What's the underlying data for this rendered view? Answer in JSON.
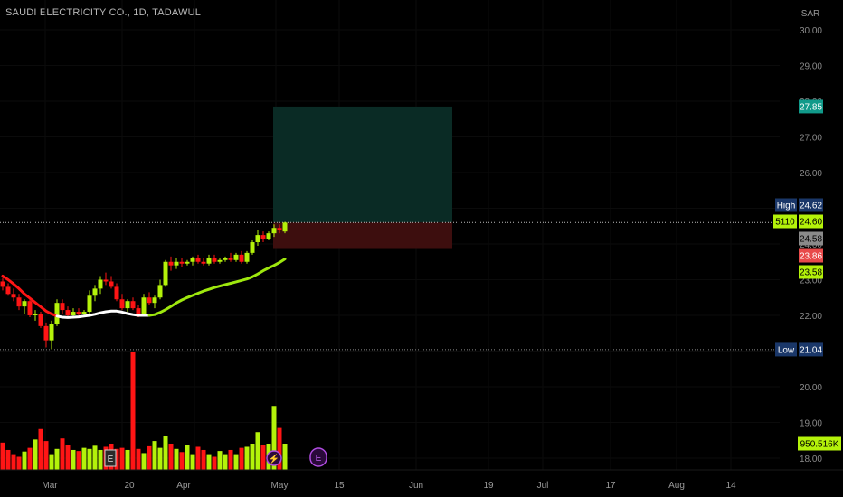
{
  "header": {
    "symbol_title": "SAUDI ELECTRICITY CO., 1D, TADAWUL",
    "currency": "SAR"
  },
  "price_axis": {
    "ticks": [
      "30.00",
      "29.00",
      "28.00",
      "27.00",
      "26.00",
      "25.00",
      "24.00",
      "23.00",
      "22.00",
      "21.00",
      "20.00",
      "19.00",
      "18.00"
    ]
  },
  "time_axis": {
    "labels": [
      "Mar",
      "20",
      "Apr",
      "May",
      "15",
      "Jun",
      "19",
      "Jul",
      "17",
      "Aug",
      "14"
    ]
  },
  "price_labels": {
    "target": "27.85",
    "high_label": "High",
    "high_value": "24.62",
    "volume_id": "5110",
    "last_price": "24.60",
    "stop_top": "24.58",
    "stop_bottom": "23.86",
    "ma_value": "23.58",
    "low_label": "Low",
    "low_value": "21.04",
    "volume_value": "950.516K"
  },
  "events": {
    "earnings_icon_1": "E",
    "earnings_icon_2": "E",
    "dividend_icon": "⚡"
  },
  "colors": {
    "bull": "#b4f20a",
    "bear": "#ff1515",
    "ma": "#9ee70e",
    "ma_transition": "#ffffff",
    "target_zone": "#0b2d27",
    "stop_zone": "#3d0e0e",
    "target_badge": "#119a8a",
    "high_low_badge": "#1a3769",
    "stop_top_badge": "#8a8a8a",
    "stop_bottom_badge": "#e84a4a"
  },
  "chart_data": {
    "type": "candlestick",
    "title": "SAUDI ELECTRICITY CO., 1D, TADAWUL",
    "currency": "SAR",
    "ylim": [
      17.7,
      30.4
    ],
    "high": 24.62,
    "low": 21.04,
    "last": 24.6,
    "trade_box": {
      "entry": 24.6,
      "target": 27.85,
      "stop": 23.86
    },
    "moving_average_last": 23.58,
    "volume_last": "950.516K",
    "candles": [
      [
        22.95,
        23.05,
        22.7,
        22.8
      ],
      [
        22.8,
        22.9,
        22.55,
        22.6
      ],
      [
        22.6,
        22.75,
        22.4,
        22.5
      ],
      [
        22.5,
        22.6,
        22.15,
        22.25
      ],
      [
        22.25,
        22.45,
        22.05,
        22.4
      ],
      [
        22.4,
        22.5,
        21.95,
        22.0
      ],
      [
        22.0,
        22.15,
        21.85,
        22.05
      ],
      [
        22.05,
        22.1,
        21.65,
        21.7
      ],
      [
        21.7,
        21.8,
        21.1,
        21.3
      ],
      [
        21.3,
        21.85,
        21.05,
        21.75
      ],
      [
        21.75,
        22.45,
        21.7,
        22.35
      ],
      [
        22.35,
        22.45,
        22.05,
        22.15
      ],
      [
        22.15,
        22.25,
        21.95,
        22.0
      ],
      [
        22.0,
        22.2,
        21.95,
        22.1
      ],
      [
        22.1,
        22.2,
        21.95,
        22.05
      ],
      [
        22.05,
        22.15,
        21.95,
        22.1
      ],
      [
        22.1,
        22.7,
        22.0,
        22.55
      ],
      [
        22.55,
        22.85,
        22.4,
        22.75
      ],
      [
        22.75,
        23.1,
        22.6,
        23.0
      ],
      [
        23.0,
        23.2,
        22.85,
        22.95
      ],
      [
        22.95,
        23.1,
        22.75,
        22.8
      ],
      [
        22.8,
        22.9,
        22.4,
        22.45
      ],
      [
        22.45,
        22.6,
        22.15,
        22.2
      ],
      [
        22.2,
        22.45,
        22.1,
        22.4
      ],
      [
        22.4,
        22.5,
        22.15,
        22.2
      ],
      [
        22.2,
        22.3,
        21.95,
        22.05
      ],
      [
        22.05,
        22.6,
        22.0,
        22.5
      ],
      [
        22.5,
        22.65,
        22.3,
        22.35
      ],
      [
        22.35,
        22.55,
        22.2,
        22.5
      ],
      [
        22.5,
        23.0,
        22.45,
        22.85
      ],
      [
        22.85,
        23.55,
        22.8,
        23.5
      ],
      [
        23.5,
        23.65,
        23.25,
        23.4
      ],
      [
        23.4,
        23.6,
        23.3,
        23.5
      ],
      [
        23.5,
        23.6,
        23.35,
        23.45
      ],
      [
        23.45,
        23.55,
        23.4,
        23.5
      ],
      [
        23.5,
        23.65,
        23.4,
        23.6
      ],
      [
        23.6,
        23.7,
        23.45,
        23.5
      ],
      [
        23.5,
        23.6,
        23.4,
        23.45
      ],
      [
        23.45,
        23.7,
        23.4,
        23.6
      ],
      [
        23.6,
        23.7,
        23.45,
        23.5
      ],
      [
        23.5,
        23.6,
        23.45,
        23.55
      ],
      [
        23.55,
        23.65,
        23.5,
        23.6
      ],
      [
        23.6,
        23.75,
        23.5,
        23.55
      ],
      [
        23.55,
        23.75,
        23.5,
        23.7
      ],
      [
        23.7,
        23.8,
        23.45,
        23.5
      ],
      [
        23.5,
        23.8,
        23.45,
        23.75
      ],
      [
        23.75,
        24.1,
        23.7,
        24.05
      ],
      [
        24.05,
        24.4,
        23.95,
        24.25
      ],
      [
        24.25,
        24.35,
        24.05,
        24.15
      ],
      [
        24.15,
        24.35,
        24.1,
        24.3
      ],
      [
        24.3,
        24.55,
        24.2,
        24.45
      ],
      [
        24.45,
        24.55,
        24.3,
        24.4
      ],
      [
        24.35,
        24.62,
        24.3,
        24.6
      ]
    ],
    "volume": [
      0.52,
      0.38,
      0.3,
      0.25,
      0.35,
      0.42,
      0.58,
      0.78,
      0.55,
      0.3,
      0.4,
      0.6,
      0.48,
      0.38,
      0.36,
      0.42,
      0.4,
      0.46,
      0.38,
      0.44,
      0.5,
      0.4,
      0.42,
      0.38,
      2.25,
      0.4,
      0.32,
      0.45,
      0.55,
      0.42,
      0.65,
      0.5,
      0.4,
      0.34,
      0.48,
      0.3,
      0.44,
      0.38,
      0.3,
      0.25,
      0.36,
      0.3,
      0.38,
      0.3,
      0.42,
      0.44,
      0.5,
      0.72,
      0.48,
      0.5,
      1.22,
      0.8,
      0.5
    ],
    "moving_average": [
      23.1,
      23.0,
      22.88,
      22.75,
      22.6,
      22.48,
      22.36,
      22.24,
      22.12,
      22.04,
      21.98,
      21.95,
      21.94,
      21.95,
      21.96,
      21.98,
      22.0,
      22.03,
      22.07,
      22.1,
      22.12,
      22.12,
      22.09,
      22.05,
      22.02,
      22.0,
      22.0,
      22.0,
      22.02,
      22.08,
      22.16,
      22.25,
      22.35,
      22.43,
      22.5,
      22.56,
      22.62,
      22.68,
      22.73,
      22.78,
      22.82,
      22.86,
      22.9,
      22.94,
      22.98,
      23.02,
      23.08,
      23.16,
      23.25,
      23.33,
      23.4,
      23.48,
      23.58
    ]
  }
}
